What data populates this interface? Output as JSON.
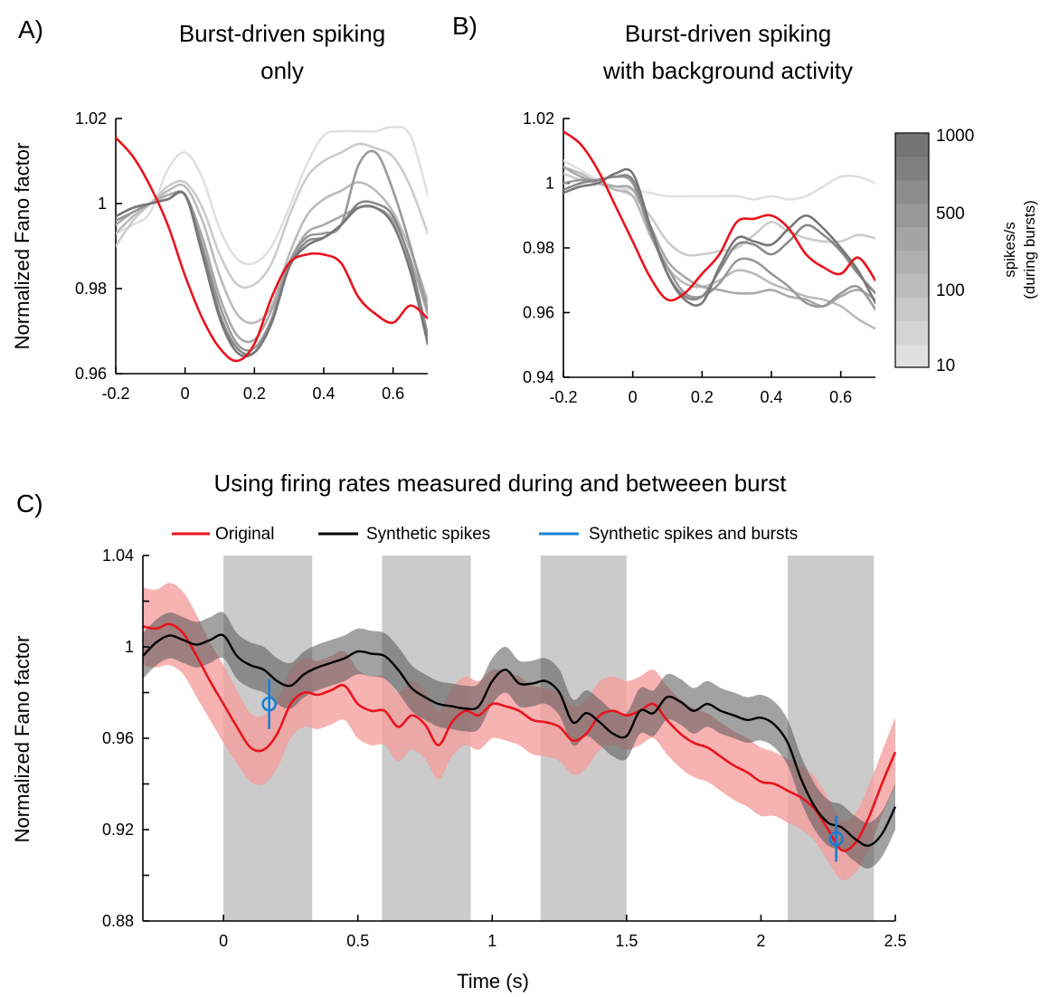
{
  "chart_data": [
    {
      "id": "A",
      "type": "line",
      "panel_label": "A)",
      "title_lines": [
        "Burst-driven spiking",
        "only"
      ],
      "ylabel": "Normalized Fano factor",
      "xlim": [
        -0.2,
        0.7
      ],
      "ylim": [
        0.96,
        1.02
      ],
      "x_ticks": [
        -0.2,
        0,
        0.2,
        0.4,
        0.6
      ],
      "x_tick_labels": [
        "-0.2",
        "0",
        "0.2",
        "0.4",
        "0.6"
      ],
      "y_ticks": [
        0.96,
        0.98,
        1,
        1.02
      ],
      "y_tick_labels": [
        "0.96",
        "0.98",
        "1",
        "1.02"
      ],
      "x": [
        -0.2,
        -0.15,
        -0.1,
        -0.05,
        0,
        0.05,
        0.1,
        0.15,
        0.2,
        0.25,
        0.3,
        0.35,
        0.4,
        0.45,
        0.5,
        0.55,
        0.6,
        0.65,
        0.7
      ],
      "series": [
        {
          "color": "#e0e0e0",
          "values": [
            0.993,
            0.995,
            0.998,
            1.008,
            1.012,
            1.006,
            0.994,
            0.987,
            0.986,
            0.99,
            0.999,
            1.009,
            1.016,
            1.017,
            1.017,
            1.017,
            1.018,
            1.016,
            1.002
          ]
        },
        {
          "color": "#cccccc",
          "values": [
            0.99,
            0.996,
            1.0,
            1.004,
            1.005,
            0.999,
            0.988,
            0.981,
            0.981,
            0.986,
            0.997,
            1.006,
            1.01,
            1.012,
            1.014,
            1.013,
            1.011,
            1.004,
            0.993
          ]
        },
        {
          "color": "#bbbbbb",
          "values": [
            0.993,
            0.997,
            1.0,
            1.003,
            1.004,
            0.996,
            0.983,
            0.974,
            0.972,
            0.976,
            0.988,
            0.997,
            1.001,
            1.003,
            1.005,
            1.003,
            0.998,
            0.989,
            0.977
          ]
        },
        {
          "color": "#a9a9a9",
          "values": [
            0.995,
            0.998,
            1.0,
            1.002,
            1.002,
            0.992,
            0.978,
            0.969,
            0.968,
            0.975,
            0.986,
            0.993,
            0.995,
            0.997,
            0.999,
            0.999,
            0.996,
            0.987,
            0.974
          ]
        },
        {
          "color": "#999999",
          "values": [
            0.996,
            0.998,
            1.0,
            1.001,
            1.002,
            0.99,
            0.976,
            0.967,
            0.966,
            0.973,
            0.986,
            0.992,
            0.993,
            0.995,
            1.009,
            1.012,
            1.003,
            0.99,
            0.975
          ]
        },
        {
          "color": "#888888",
          "values": [
            0.997,
            0.999,
            1.0,
            1.001,
            1.002,
            0.989,
            0.974,
            0.966,
            0.965,
            0.972,
            0.985,
            0.991,
            0.992,
            0.995,
            1.0,
            1.0,
            0.997,
            0.986,
            0.969
          ]
        },
        {
          "color": "#777777",
          "values": [
            0.997,
            0.999,
            1.0,
            1.001,
            1.002,
            0.988,
            0.973,
            0.965,
            0.965,
            0.972,
            0.985,
            0.99,
            0.992,
            0.995,
            0.999,
            0.999,
            0.995,
            0.984,
            0.967
          ]
        },
        {
          "color": "#e8141e",
          "width": 2.6,
          "values": [
            1.0155,
            1.011,
            1.004,
            0.995,
            0.983,
            0.973,
            0.966,
            0.963,
            0.967,
            0.978,
            0.986,
            0.988,
            0.988,
            0.986,
            0.978,
            0.974,
            0.972,
            0.976,
            0.973
          ]
        }
      ]
    },
    {
      "id": "B",
      "type": "line",
      "panel_label": "B)",
      "title_lines": [
        "Burst-driven spiking",
        "with background activity"
      ],
      "xlim": [
        -0.2,
        0.7
      ],
      "ylim": [
        0.94,
        1.02
      ],
      "x_ticks": [
        -0.2,
        0,
        0.2,
        0.4,
        0.6
      ],
      "x_tick_labels": [
        "-0.2",
        "0",
        "0.2",
        "0.4",
        "0.6"
      ],
      "y_ticks": [
        0.94,
        0.96,
        0.98,
        1,
        1.02
      ],
      "y_tick_labels": [
        "0.94",
        "0.96",
        "0.98",
        "1",
        "1.02"
      ],
      "x": [
        -0.2,
        -0.15,
        -0.1,
        -0.05,
        0,
        0.05,
        0.1,
        0.15,
        0.2,
        0.25,
        0.3,
        0.35,
        0.4,
        0.45,
        0.5,
        0.55,
        0.6,
        0.65,
        0.7
      ],
      "series": [
        {
          "color": "#e0e0e0",
          "values": [
            1.007,
            1.004,
            1.001,
            0.999,
            0.998,
            0.997,
            0.996,
            0.996,
            0.996,
            0.996,
            0.996,
            0.995,
            0.996,
            0.995,
            0.996,
            0.999,
            1.002,
            1.002,
            1.0
          ]
        },
        {
          "color": "#cccccc",
          "values": [
            1.003,
            1.001,
            1.0,
            0.998,
            0.996,
            0.99,
            0.982,
            0.978,
            0.978,
            0.979,
            0.98,
            0.984,
            0.988,
            0.985,
            0.983,
            0.982,
            0.982,
            0.984,
            0.983
          ]
        },
        {
          "color": "#bbbbbb",
          "values": [
            1.005,
            1.003,
            1.0,
            0.998,
            0.996,
            0.984,
            0.974,
            0.969,
            0.968,
            0.97,
            0.973,
            0.972,
            0.969,
            0.967,
            0.965,
            0.964,
            0.962,
            0.958,
            0.955
          ]
        },
        {
          "color": "#a9a9a9",
          "values": [
            1.005,
            1.002,
            1.0,
            0.999,
            0.998,
            0.987,
            0.976,
            0.971,
            0.968,
            0.967,
            0.966,
            0.966,
            0.967,
            0.965,
            0.964,
            0.962,
            0.965,
            0.967,
            0.964
          ]
        },
        {
          "color": "#999999",
          "values": [
            1.0,
            1.001,
            1.001,
            1.002,
            1.0,
            0.985,
            0.974,
            0.966,
            0.965,
            0.969,
            0.976,
            0.976,
            0.972,
            0.968,
            0.963,
            0.962,
            0.966,
            0.968,
            0.961
          ]
        },
        {
          "color": "#888888",
          "values": [
            0.998,
            1.0,
            1.001,
            1.002,
            1.001,
            0.986,
            0.972,
            0.965,
            0.965,
            0.973,
            0.981,
            0.981,
            0.978,
            0.982,
            0.987,
            0.984,
            0.979,
            0.972,
            0.966
          ]
        },
        {
          "color": "#777777",
          "values": [
            0.997,
            0.999,
            1.0,
            1.003,
            1.003,
            0.987,
            0.972,
            0.964,
            0.963,
            0.974,
            0.983,
            0.982,
            0.981,
            0.986,
            0.99,
            0.986,
            0.98,
            0.973,
            0.963
          ]
        },
        {
          "color": "#e8141e",
          "width": 2.6,
          "values": [
            1.016,
            1.012,
            1.004,
            0.993,
            0.982,
            0.971,
            0.964,
            0.966,
            0.972,
            0.978,
            0.988,
            0.989,
            0.99,
            0.986,
            0.978,
            0.974,
            0.972,
            0.977,
            0.97
          ]
        }
      ]
    },
    {
      "id": "C",
      "type": "line",
      "panel_label": "C)",
      "title": "Using firing rates measured during and betweeen burst",
      "xlabel": "Time (s)",
      "ylabel": "Normalized Fano factor",
      "xlim": [
        -0.3,
        2.5
      ],
      "ylim": [
        0.88,
        1.04
      ],
      "x_ticks": [
        0,
        0.5,
        1,
        1.5,
        2,
        2.5
      ],
      "x_tick_labels": [
        "0",
        "0.5",
        "1",
        "1.5",
        "2",
        "2.5"
      ],
      "y_ticks": [
        0.88,
        0.9,
        0.92,
        0.94,
        0.96,
        0.98,
        1,
        1.02,
        1.04
      ],
      "y_tick_labels": [
        "0.88",
        "",
        "0.92",
        "",
        "0.96",
        "",
        "1",
        "",
        "1.04"
      ],
      "shaded_intervals": [
        [
          0,
          0.33
        ],
        [
          0.59,
          0.92
        ],
        [
          1.18,
          1.5
        ],
        [
          2.1,
          2.42
        ]
      ],
      "legend": [
        "Original",
        "Synthetic spikes",
        "Synthetic spikes and bursts"
      ],
      "colors": {
        "original": "#e8141e",
        "original_band": "#f59c9c",
        "synthetic": "#000000",
        "synthetic_band": "#555555",
        "bursts": "#1a7fd4",
        "shade": "#cbcbcb"
      },
      "x": [
        -0.3,
        -0.25,
        -0.2,
        -0.15,
        -0.1,
        -0.05,
        0,
        0.05,
        0.1,
        0.15,
        0.2,
        0.25,
        0.3,
        0.35,
        0.4,
        0.45,
        0.5,
        0.55,
        0.6,
        0.65,
        0.7,
        0.75,
        0.8,
        0.85,
        0.9,
        0.95,
        1,
        1.05,
        1.1,
        1.15,
        1.2,
        1.25,
        1.3,
        1.35,
        1.4,
        1.45,
        1.5,
        1.55,
        1.6,
        1.65,
        1.7,
        1.75,
        1.8,
        1.85,
        1.9,
        1.95,
        2,
        2.05,
        2.1,
        2.15,
        2.2,
        2.25,
        2.3,
        2.35,
        2.4,
        2.45,
        2.5
      ],
      "series": [
        {
          "name": "Original",
          "values": [
            1.009,
            1.008,
            1.01,
            1.006,
            0.996,
            0.985,
            0.975,
            0.965,
            0.956,
            0.955,
            0.962,
            0.975,
            0.98,
            0.979,
            0.981,
            0.983,
            0.975,
            0.972,
            0.972,
            0.965,
            0.97,
            0.966,
            0.957,
            0.967,
            0.972,
            0.97,
            0.975,
            0.974,
            0.972,
            0.968,
            0.967,
            0.965,
            0.959,
            0.962,
            0.97,
            0.972,
            0.97,
            0.972,
            0.975,
            0.968,
            0.962,
            0.958,
            0.956,
            0.952,
            0.948,
            0.945,
            0.941,
            0.94,
            0.937,
            0.934,
            0.929,
            0.92,
            0.911,
            0.914,
            0.925,
            0.94,
            0.954
          ],
          "band": [
            0.017,
            0.017,
            0.018,
            0.018,
            0.018,
            0.017,
            0.017,
            0.016,
            0.015,
            0.015,
            0.015,
            0.015,
            0.015,
            0.015,
            0.015,
            0.015,
            0.015,
            0.015,
            0.015,
            0.015,
            0.015,
            0.015,
            0.015,
            0.015,
            0.015,
            0.015,
            0.015,
            0.015,
            0.015,
            0.015,
            0.015,
            0.015,
            0.015,
            0.015,
            0.015,
            0.015,
            0.015,
            0.015,
            0.015,
            0.015,
            0.015,
            0.015,
            0.015,
            0.015,
            0.015,
            0.015,
            0.015,
            0.014,
            0.014,
            0.014,
            0.014,
            0.014,
            0.013,
            0.013,
            0.014,
            0.014,
            0.015
          ]
        },
        {
          "name": "Synthetic spikes",
          "values": [
            0.996,
            1.002,
            1.005,
            1.003,
            1.001,
            1.003,
            1.005,
            0.996,
            0.992,
            0.99,
            0.985,
            0.983,
            0.988,
            0.991,
            0.993,
            0.995,
            0.998,
            0.997,
            0.996,
            0.99,
            0.982,
            0.978,
            0.975,
            0.974,
            0.973,
            0.974,
            0.985,
            0.99,
            0.984,
            0.984,
            0.985,
            0.98,
            0.967,
            0.971,
            0.967,
            0.962,
            0.961,
            0.972,
            0.971,
            0.978,
            0.976,
            0.972,
            0.975,
            0.972,
            0.97,
            0.968,
            0.969,
            0.966,
            0.958,
            0.942,
            0.93,
            0.923,
            0.921,
            0.916,
            0.913,
            0.918,
            0.93
          ],
          "band": [
            0.01,
            0.01,
            0.01,
            0.01,
            0.01,
            0.01,
            0.01,
            0.01,
            0.01,
            0.01,
            0.01,
            0.01,
            0.01,
            0.01,
            0.01,
            0.01,
            0.01,
            0.01,
            0.01,
            0.01,
            0.01,
            0.01,
            0.01,
            0.01,
            0.01,
            0.01,
            0.01,
            0.01,
            0.01,
            0.01,
            0.01,
            0.01,
            0.01,
            0.01,
            0.01,
            0.01,
            0.01,
            0.01,
            0.01,
            0.01,
            0.01,
            0.01,
            0.01,
            0.01,
            0.01,
            0.01,
            0.01,
            0.01,
            0.01,
            0.01,
            0.01,
            0.01,
            0.01,
            0.01,
            0.01,
            0.01,
            0.01
          ]
        },
        {
          "name": "Synthetic spikes and bursts",
          "type": "errorbar",
          "points": [
            {
              "x": 0.17,
              "y": 0.975,
              "err": 0.011
            },
            {
              "x": 2.28,
              "y": 0.916,
              "err": 0.01
            }
          ]
        }
      ]
    }
  ],
  "colorbar": {
    "label_lines": [
      "spikes/s",
      "(during bursts)"
    ],
    "ticks": [
      "1000",
      "500",
      "100",
      "10"
    ],
    "levels": [
      "#e0e0e0",
      "#d4d4d4",
      "#c8c8c8",
      "#bcbcbc",
      "#b0b0b0",
      "#a4a4a4",
      "#989898",
      "#8c8c8c",
      "#808080",
      "#747474"
    ]
  }
}
